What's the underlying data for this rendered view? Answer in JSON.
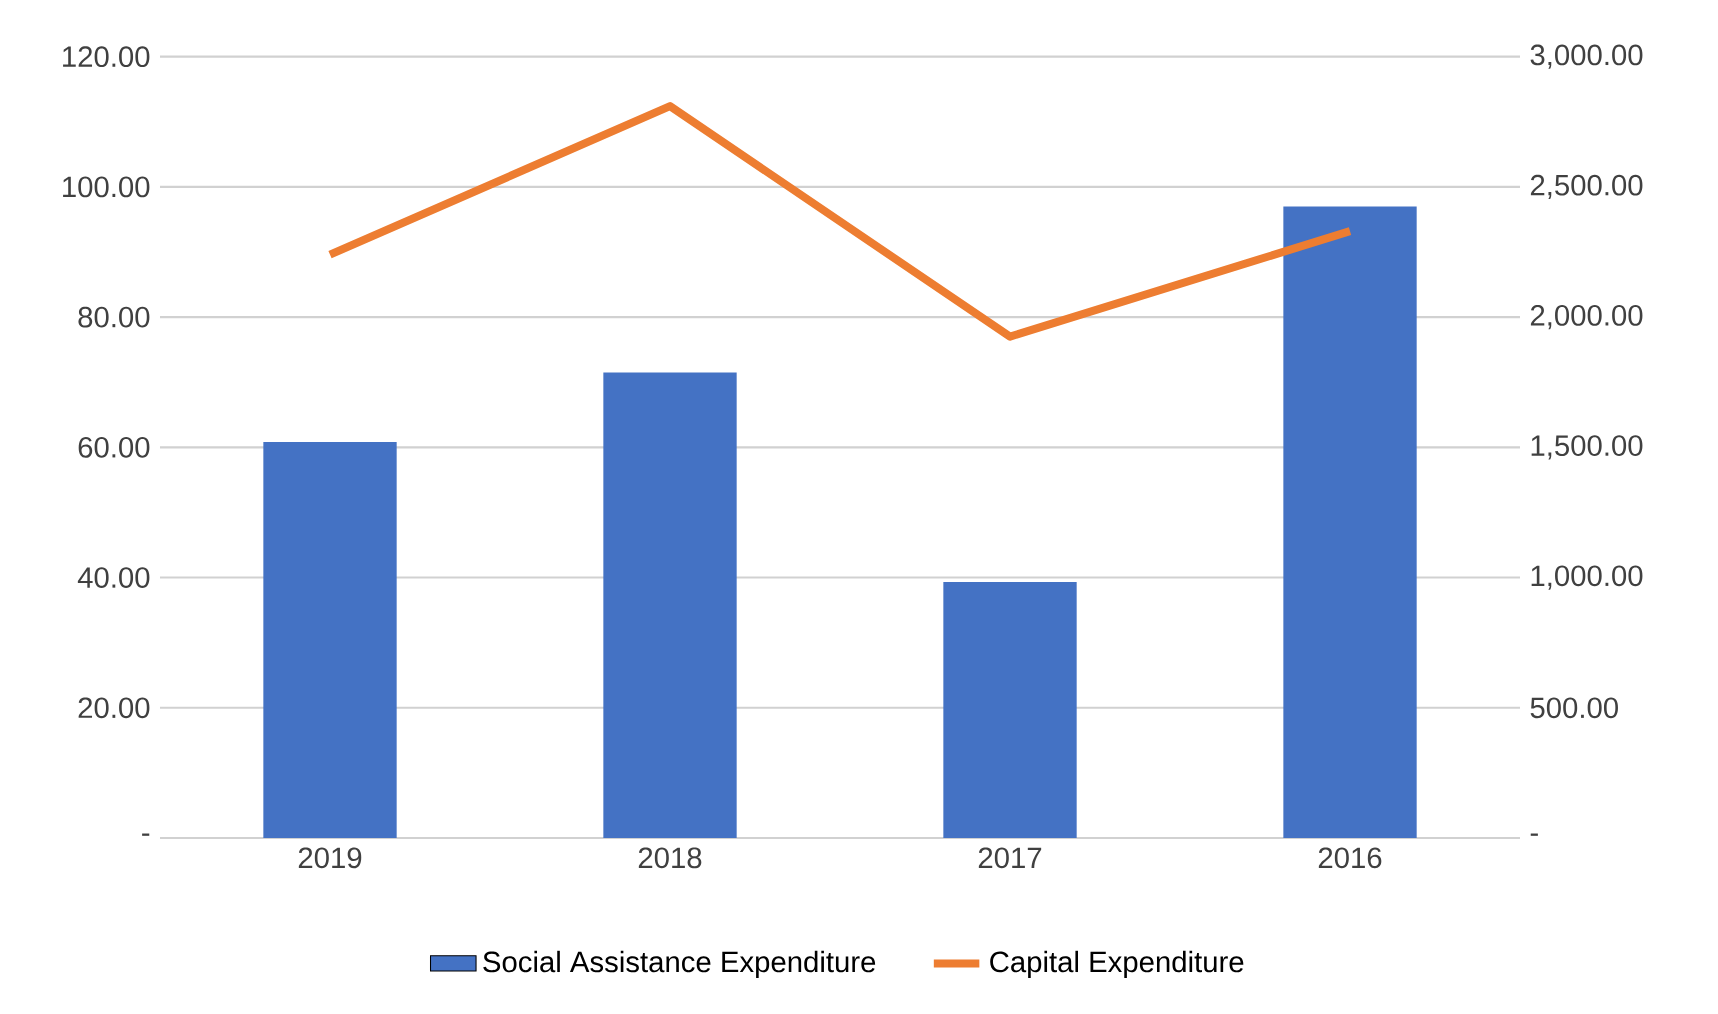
{
  "chart_data": {
    "type": "bar",
    "categories": [
      "2019",
      "2018",
      "2017",
      "2016"
    ],
    "series": [
      {
        "name": "Social Assistance Expenditure",
        "color": "#4472c4",
        "values": [
          60.8,
          71.5,
          39.3,
          97.0
        ]
      },
      {
        "name": "Capital Expenditure",
        "type": "line",
        "axis": "y2",
        "color": "#ed7d31",
        "values": [
          2240,
          2810,
          1925,
          2330
        ]
      }
    ],
    "ylim": [
      0,
      120
    ],
    "yticks": [
      {
        "value": 0,
        "label": "-"
      },
      {
        "value": 20,
        "label": "20.00"
      },
      {
        "value": 40,
        "label": "40.00"
      },
      {
        "value": 60,
        "label": "60.00"
      },
      {
        "value": 80,
        "label": "80.00"
      },
      {
        "value": 100,
        "label": "100.00"
      },
      {
        "value": 120,
        "label": "120.00"
      }
    ],
    "y2lim": [
      0,
      3000
    ],
    "y2ticks": [
      {
        "value": 0,
        "label": "-"
      },
      {
        "value": 500,
        "label": "500.00"
      },
      {
        "value": 1000,
        "label": "1,000.00"
      },
      {
        "value": 1500,
        "label": "1,500.00"
      },
      {
        "value": 2000,
        "label": "2,000.00"
      },
      {
        "value": 2500,
        "label": "2,500.00"
      },
      {
        "value": 3000,
        "label": "3,000.00"
      }
    ],
    "grid": "y",
    "legend": "bottom"
  }
}
